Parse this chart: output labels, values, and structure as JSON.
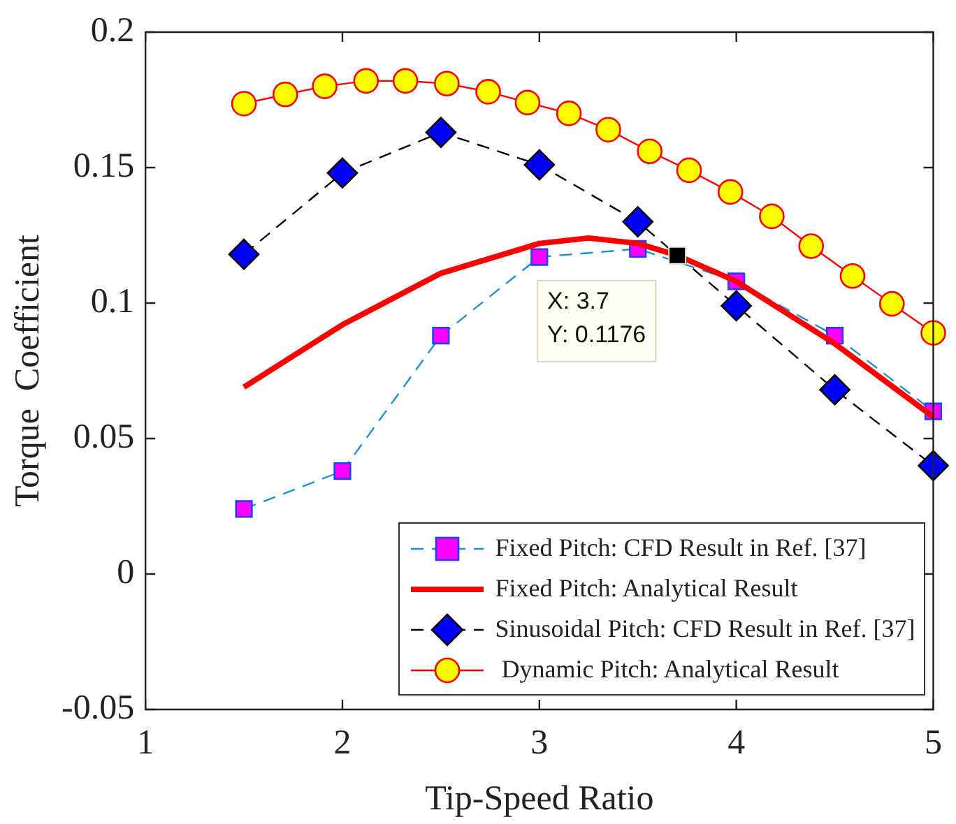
{
  "chart_data": {
    "type": "line",
    "xlabel": "Tip-Speed Ratio",
    "ylabel": "Torque  Coefficient",
    "xlim": [
      1,
      5
    ],
    "xticks": [
      1,
      2,
      3,
      4,
      5
    ],
    "ylim": [
      -0.05,
      0.2
    ],
    "yticks": [
      -0.05,
      0,
      0.05,
      0.1,
      0.15,
      0.2
    ],
    "grid": false,
    "legend": "bottom right",
    "series": [
      {
        "name": "Fixed Pitch: CFD Result in Ref. [37]",
        "color": "#1f8fd6",
        "colors": [
          "#ff00ff",
          "#ff00ff",
          "#ff00ff",
          "#ff00ff",
          "#ff00ff",
          "#ff00ff",
          "#ff00ff",
          "#ff00ff"
        ],
        "marker": "square",
        "line_style": "dashed",
        "x": [
          1.5,
          2,
          2.5,
          3,
          3.5,
          4,
          4.5,
          5
        ],
        "values": [
          0.024,
          0.038,
          0.088,
          0.117,
          0.12,
          0.108,
          0.088,
          0.06
        ]
      },
      {
        "name": "Fixed Pitch: Analytical Result",
        "color": "#ff0000",
        "marker": "none",
        "line_style": "solid",
        "x": [
          1.5,
          2,
          2.5,
          3,
          3.25,
          3.5,
          3.7,
          4,
          4.5,
          5
        ],
        "values": [
          0.069,
          0.092,
          0.111,
          0.122,
          0.124,
          0.122,
          0.1176,
          0.108,
          0.085,
          0.058
        ]
      },
      {
        "name": "Sinusoidal Pitch: CFD Result in Ref. [37]",
        "color": "#000000",
        "colors": [
          "#0000ff",
          "#0000ff",
          "#0000ff",
          "#0000ff",
          "#0000ff",
          "#0000ff",
          "#0000ff",
          "#0000ff"
        ],
        "marker": "diamond",
        "line_style": "dashed",
        "x": [
          1.5,
          2,
          2.5,
          3,
          3.5,
          4,
          4.5,
          5
        ],
        "values": [
          0.118,
          0.148,
          0.163,
          0.151,
          0.13,
          0.099,
          0.068,
          0.04
        ]
      },
      {
        "name": " Dynamic Pitch: Analytical Result",
        "color": "#ff0000",
        "colors": [
          "#ffff00",
          "#ffff00",
          "#ffff00",
          "#ffff00",
          "#ffff00",
          "#ffff00",
          "#ffff00",
          "#ffff00",
          "#ffff00",
          "#ffff00",
          "#ffff00",
          "#ffff00",
          "#ffff00",
          "#ffff00",
          "#ffff00",
          "#ffff00",
          "#ffff00",
          "#ffff00"
        ],
        "marker": "circle",
        "line_style": "solid",
        "x": [
          1.5,
          1.71,
          1.91,
          2.12,
          2.32,
          2.53,
          2.74,
          2.94,
          3.15,
          3.35,
          3.56,
          3.76,
          3.97,
          4.18,
          4.38,
          4.59,
          4.79,
          5
        ],
        "values": [
          0.1736,
          0.177,
          0.18,
          0.182,
          0.182,
          0.181,
          0.178,
          0.174,
          0.17,
          0.164,
          0.156,
          0.149,
          0.141,
          0.132,
          0.121,
          0.11,
          0.0997,
          0.089
        ]
      }
    ],
    "annotations": [
      {
        "text": "X: 3.7\nY: 0.1176",
        "x": 3.7,
        "y": 0.1176
      }
    ]
  }
}
